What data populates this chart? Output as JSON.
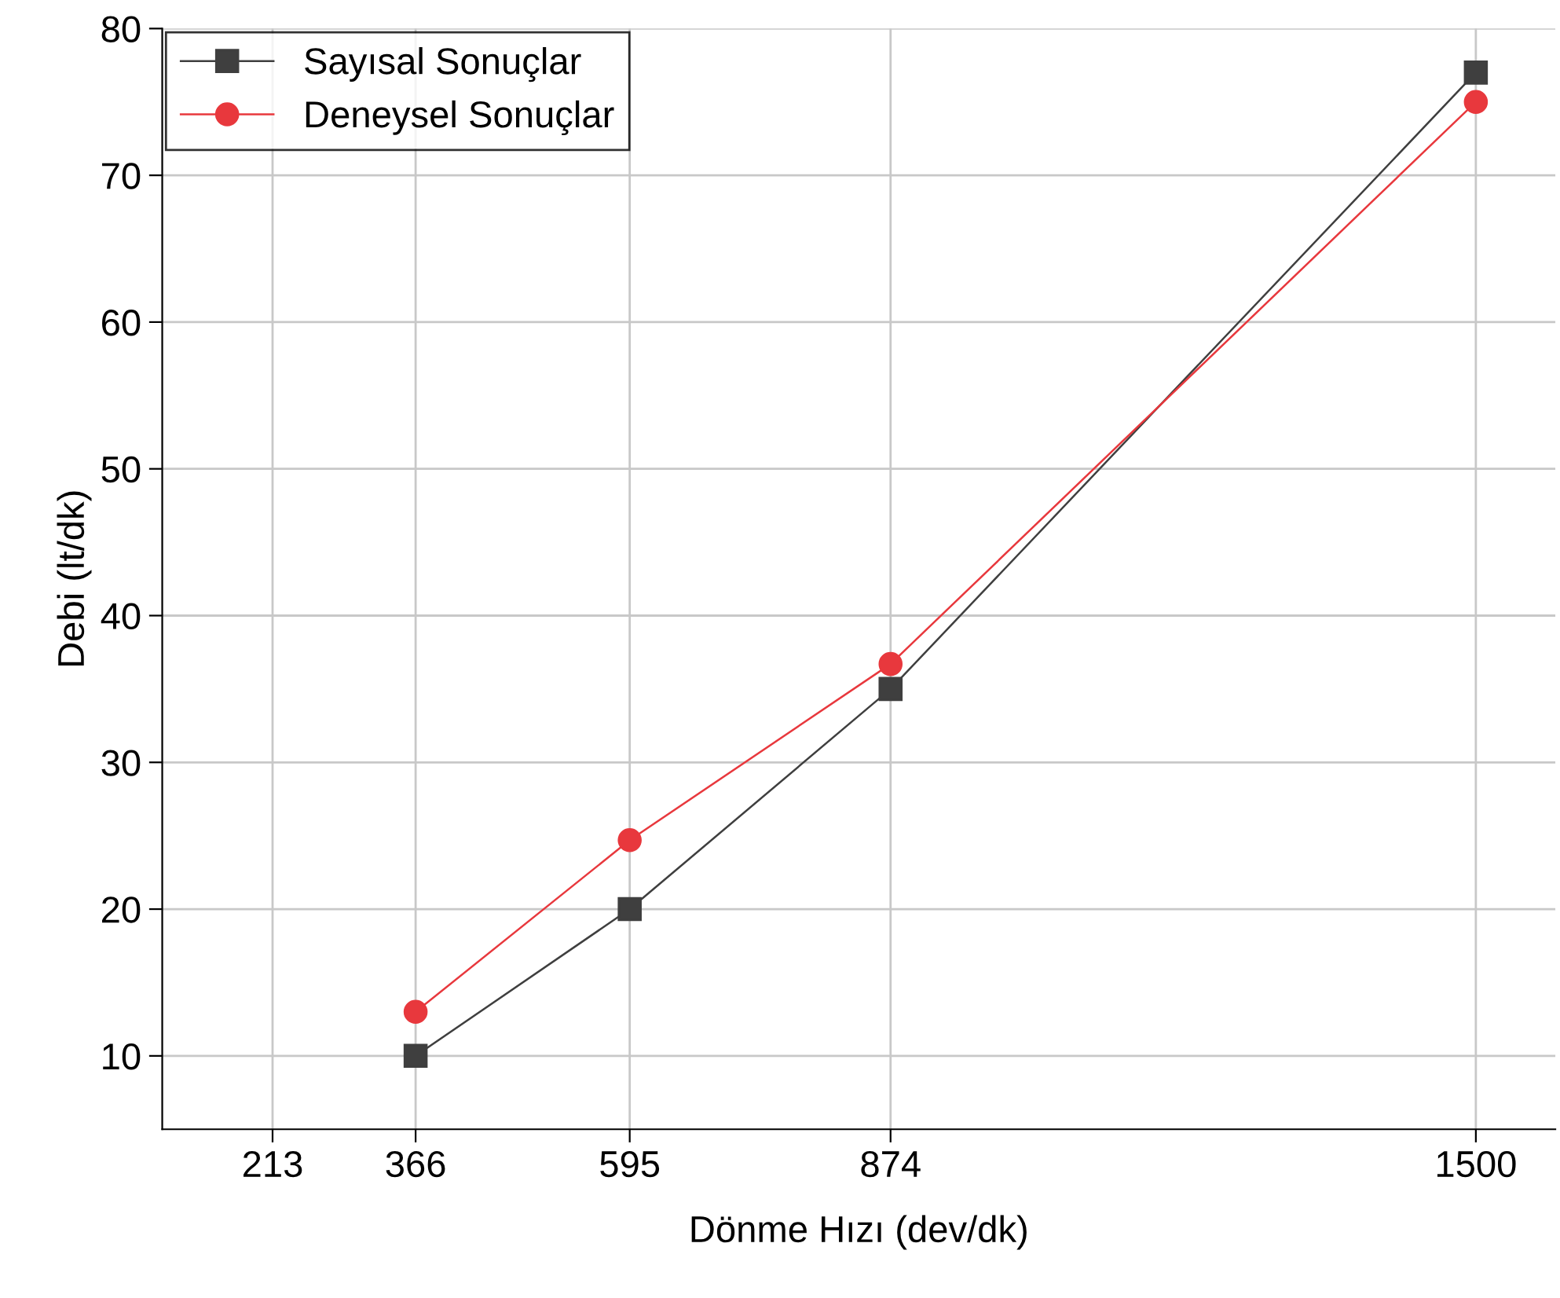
{
  "chart_data": {
    "type": "line",
    "xlabel": "Dönme Hızı (dev/dk)",
    "ylabel": "Debi (lt/dk)",
    "x": [
      366,
      595,
      874,
      1500
    ],
    "series": [
      {
        "name": "Sayısal Sonuçlar",
        "color": "#3f3f3f",
        "marker": "square",
        "values": [
          10,
          20,
          35,
          77
        ]
      },
      {
        "name": "Deneysel Sonuçlar",
        "color": "#e8383d",
        "marker": "circle",
        "values": [
          13,
          24.7,
          36.7,
          75
        ]
      }
    ],
    "xlim": [
      95,
      1585
    ],
    "xticks": [
      213,
      366,
      595,
      874,
      1500
    ],
    "ylim": [
      5,
      80
    ],
    "yticks": [
      10,
      20,
      30,
      40,
      50,
      60,
      70,
      80
    ],
    "grid": true,
    "legend": "top left",
    "line_style": "solid"
  }
}
